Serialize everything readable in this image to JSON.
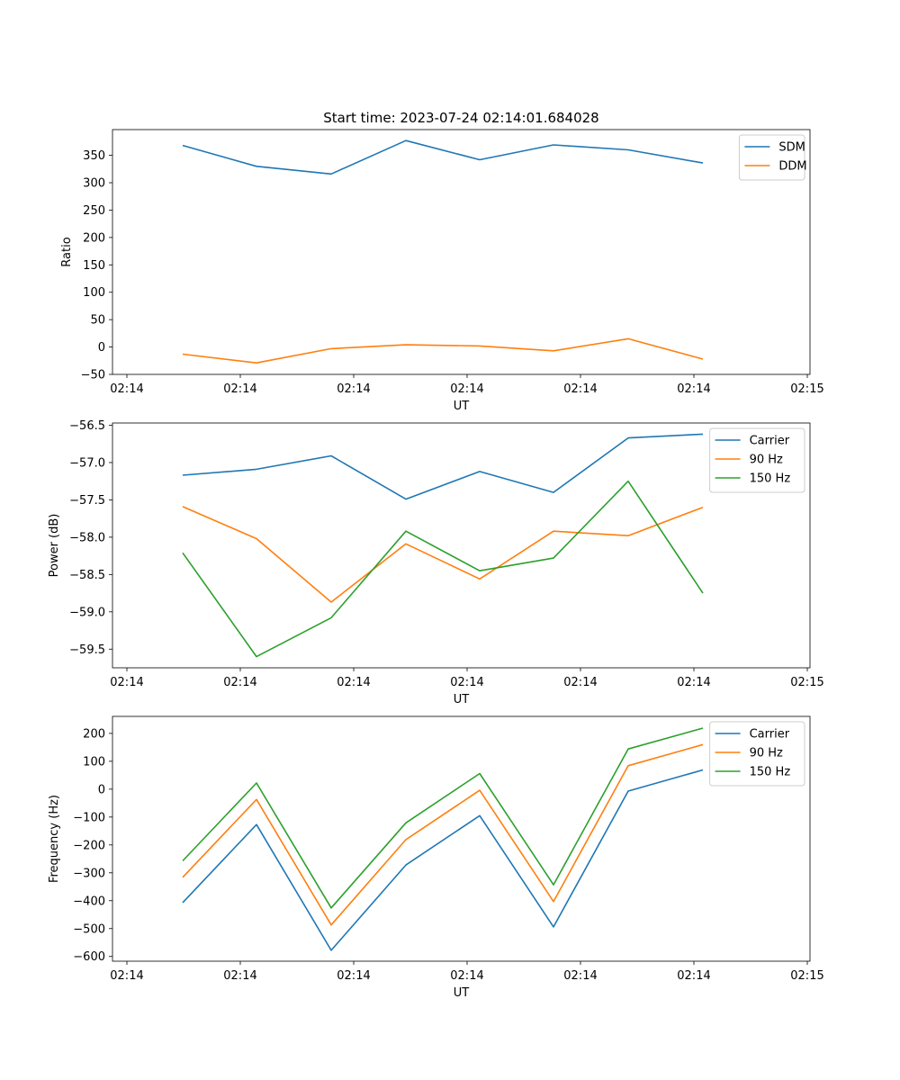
{
  "figure": {
    "title": "Start time: 2023-07-24 02:14:01.684028"
  },
  "colors": {
    "c0": "#1f77b4",
    "c1": "#ff7f0e",
    "c2": "#2ca02c"
  },
  "chart_data": [
    {
      "type": "line",
      "xlabel": "UT",
      "ylabel": "Ratio",
      "xtick_labels": [
        "02:14",
        "02:14",
        "02:14",
        "02:14",
        "02:14",
        "02:14",
        "02:15"
      ],
      "yticks": [
        -50,
        0,
        50,
        100,
        150,
        200,
        250,
        300,
        350
      ],
      "ylim": [
        -50,
        397
      ],
      "x": [
        1,
        2,
        3,
        4,
        5,
        6,
        7,
        8
      ],
      "legend": "upper right",
      "series": [
        {
          "name": "SDM",
          "color": "#1f77b4",
          "values": [
            368,
            330,
            316,
            377,
            342,
            369,
            360,
            336
          ]
        },
        {
          "name": "DDM",
          "color": "#ff7f0e",
          "values": [
            -13,
            -29,
            -3,
            4,
            2,
            -7,
            15,
            -22
          ]
        }
      ]
    },
    {
      "type": "line",
      "xlabel": "UT",
      "ylabel": "Power (dB)",
      "xtick_labels": [
        "02:14",
        "02:14",
        "02:14",
        "02:14",
        "02:14",
        "02:14",
        "02:15"
      ],
      "yticks": [
        -59.5,
        -59.0,
        -58.5,
        -58.0,
        -57.5,
        -57.0,
        -56.5
      ],
      "ylim": [
        -59.75,
        -56.47
      ],
      "x": [
        1,
        2,
        3,
        4,
        5,
        6,
        7,
        8
      ],
      "legend": "upper right",
      "series": [
        {
          "name": "Carrier",
          "color": "#1f77b4",
          "values": [
            -57.17,
            -57.09,
            -56.91,
            -57.49,
            -57.12,
            -57.4,
            -56.67,
            -56.62
          ]
        },
        {
          "name": "90 Hz",
          "color": "#ff7f0e",
          "values": [
            -57.59,
            -58.02,
            -58.87,
            -58.09,
            -58.56,
            -57.92,
            -57.98,
            -57.6
          ]
        },
        {
          "name": "150 Hz",
          "color": "#2ca02c",
          "values": [
            -58.21,
            -59.6,
            -59.08,
            -57.92,
            -58.45,
            -58.28,
            -57.25,
            -58.75
          ]
        }
      ]
    },
    {
      "type": "line",
      "xlabel": "UT",
      "ylabel": "Frequency (Hz)",
      "xtick_labels": [
        "02:14",
        "02:14",
        "02:14",
        "02:14",
        "02:14",
        "02:14",
        "02:15"
      ],
      "yticks": [
        -600,
        -500,
        -400,
        -300,
        -200,
        -100,
        0,
        100,
        200
      ],
      "ylim": [
        -617,
        261
      ],
      "x": [
        1,
        2,
        3,
        4,
        5,
        6,
        7,
        8
      ],
      "legend": "upper right",
      "series": [
        {
          "name": "Carrier",
          "color": "#1f77b4",
          "values": [
            -407,
            -127,
            -578,
            -272,
            -95,
            -494,
            -7,
            69
          ]
        },
        {
          "name": "90 Hz",
          "color": "#ff7f0e",
          "values": [
            -316,
            -37,
            -487,
            -181,
            -4,
            -403,
            84,
            160
          ]
        },
        {
          "name": "150 Hz",
          "color": "#2ca02c",
          "values": [
            -257,
            22,
            -426,
            -121,
            56,
            -343,
            144,
            219
          ]
        }
      ]
    }
  ]
}
